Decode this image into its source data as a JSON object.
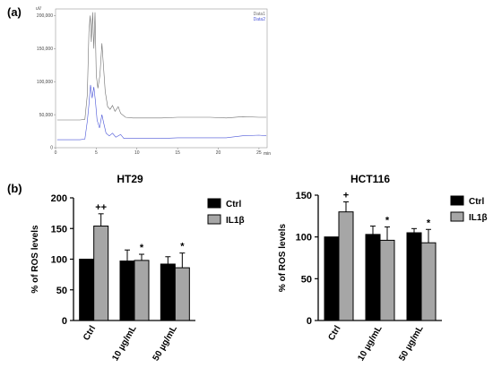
{
  "panel_labels": {
    "a": "(a)",
    "b": "(b)"
  },
  "chart_data": [
    {
      "type": "line",
      "panel": "a",
      "title": "",
      "xlabel": "min",
      "ylabel": "uV",
      "xlim": [
        0,
        26
      ],
      "ylim": [
        0,
        210000
      ],
      "xticks": [
        0,
        5,
        10,
        15,
        20,
        25
      ],
      "yticks": [
        0,
        50000,
        100000,
        150000,
        200000
      ],
      "ytick_labels": [
        "0",
        "50,000",
        "100,000",
        "150,000",
        "200,000"
      ],
      "legend": [
        "Data1",
        "Data2"
      ],
      "legend_position": "top-right",
      "series": [
        {
          "name": "Data1",
          "color": "#6f6f6f",
          "points": [
            [
              0.2,
              42000
            ],
            [
              3.0,
              42000
            ],
            [
              3.6,
              43000
            ],
            [
              3.9,
              80000
            ],
            [
              4.1,
              175000
            ],
            [
              4.25,
              200000
            ],
            [
              4.4,
              160000
            ],
            [
              4.55,
              205000
            ],
            [
              4.7,
              150000
            ],
            [
              4.85,
              205000
            ],
            [
              5.0,
              110000
            ],
            [
              5.2,
              90000
            ],
            [
              5.45,
              110000
            ],
            [
              5.7,
              158000
            ],
            [
              5.9,
              120000
            ],
            [
              6.1,
              85000
            ],
            [
              6.4,
              62000
            ],
            [
              6.7,
              58000
            ],
            [
              7.0,
              64000
            ],
            [
              7.3,
              55000
            ],
            [
              7.7,
              62000
            ],
            [
              8.0,
              52000
            ],
            [
              8.6,
              46000
            ],
            [
              9.5,
              45000
            ],
            [
              11,
              45000
            ],
            [
              13,
              45000
            ],
            [
              15,
              46000
            ],
            [
              17,
              46000
            ],
            [
              19,
              46000
            ],
            [
              21,
              45000
            ],
            [
              23,
              47000
            ],
            [
              25,
              46000
            ],
            [
              25.9,
              46000
            ]
          ]
        },
        {
          "name": "Data2",
          "color": "#4a55d8",
          "points": [
            [
              0.2,
              12000
            ],
            [
              3.0,
              12000
            ],
            [
              3.6,
              13000
            ],
            [
              3.9,
              40000
            ],
            [
              4.1,
              65000
            ],
            [
              4.3,
              95000
            ],
            [
              4.5,
              75000
            ],
            [
              4.7,
              92000
            ],
            [
              4.9,
              70000
            ],
            [
              5.1,
              42000
            ],
            [
              5.4,
              30000
            ],
            [
              5.7,
              50000
            ],
            [
              5.9,
              38000
            ],
            [
              6.2,
              22000
            ],
            [
              6.6,
              18000
            ],
            [
              7.0,
              22000
            ],
            [
              7.4,
              16000
            ],
            [
              8.0,
              20000
            ],
            [
              8.4,
              14000
            ],
            [
              9.5,
              14000
            ],
            [
              11,
              14000
            ],
            [
              13,
              14000
            ],
            [
              15,
              15000
            ],
            [
              17,
              15000
            ],
            [
              19,
              15000
            ],
            [
              21,
              15000
            ],
            [
              23,
              18000
            ],
            [
              25,
              19000
            ],
            [
              25.9,
              18000
            ]
          ]
        }
      ]
    },
    {
      "type": "bar",
      "panel": "b",
      "title": "HT29",
      "xlabel": "",
      "ylabel": "% of ROS levels",
      "ylim": [
        0,
        200
      ],
      "yticks": [
        0,
        50,
        100,
        150,
        200
      ],
      "categories": [
        "Ctrl",
        "10 µg/mL",
        "50 µg/mL"
      ],
      "legend_position": "top-right",
      "series": [
        {
          "name": "Ctrl",
          "color": "#000000",
          "values": [
            100,
            97,
            92
          ],
          "errors": [
            0,
            18,
            12
          ]
        },
        {
          "name": "IL1β",
          "color": "#a6a6a6",
          "values": [
            154,
            98,
            86
          ],
          "errors": [
            20,
            10,
            24
          ]
        }
      ],
      "annotations": [
        {
          "category": 0,
          "series": 1,
          "text": "++"
        },
        {
          "category": 1,
          "series": 1,
          "text": "*"
        },
        {
          "category": 2,
          "series": 1,
          "text": "*"
        }
      ]
    },
    {
      "type": "bar",
      "panel": "b",
      "title": "HCT116",
      "xlabel": "",
      "ylabel": "% of ROS levels",
      "ylim": [
        0,
        150
      ],
      "yticks": [
        0,
        50,
        100,
        150
      ],
      "categories": [
        "Ctrl",
        "10 µg/mL",
        "50 µg/mL"
      ],
      "legend_position": "top-right",
      "series": [
        {
          "name": "Ctrl",
          "color": "#000000",
          "values": [
            100,
            103,
            105
          ],
          "errors": [
            0,
            10,
            5
          ]
        },
        {
          "name": "IL1β",
          "color": "#a6a6a6",
          "values": [
            130,
            96,
            93
          ],
          "errors": [
            12,
            16,
            16
          ]
        }
      ],
      "annotations": [
        {
          "category": 0,
          "series": 1,
          "text": "+"
        },
        {
          "category": 1,
          "series": 1,
          "text": "*"
        },
        {
          "category": 2,
          "series": 1,
          "text": "*"
        }
      ]
    }
  ]
}
